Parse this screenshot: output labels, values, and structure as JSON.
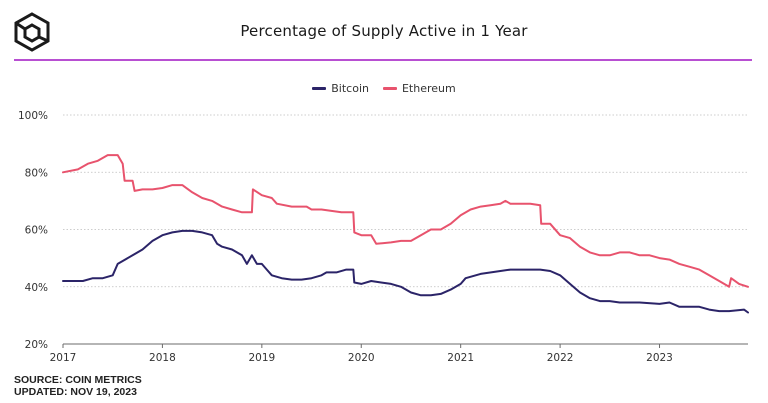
{
  "header": {
    "logo_icon": "cube-logo-icon",
    "accent_color": "#b84fd2"
  },
  "chart_data": {
    "type": "line",
    "title": "Percentage of Supply Active in 1 Year",
    "xlabel": "",
    "ylabel": "",
    "xlim": [
      2017.0,
      2023.89
    ],
    "ylim": [
      20,
      100
    ],
    "y_ticks": [
      {
        "value": 20,
        "label": "20%"
      },
      {
        "value": 40,
        "label": "40%"
      },
      {
        "value": 60,
        "label": "60%"
      },
      {
        "value": 80,
        "label": "80%"
      },
      {
        "value": 100,
        "label": "100%"
      }
    ],
    "x_ticks": [
      {
        "value": 2017,
        "label": "2017"
      },
      {
        "value": 2018,
        "label": "2018"
      },
      {
        "value": 2019,
        "label": "2019"
      },
      {
        "value": 2020,
        "label": "2020"
      },
      {
        "value": 2021,
        "label": "2021"
      },
      {
        "value": 2022,
        "label": "2022"
      },
      {
        "value": 2023,
        "label": "2023"
      }
    ],
    "grid": "horizontal",
    "legend_position": "top-center",
    "series": [
      {
        "name": "Bitcoin",
        "color": "#2b2468",
        "points": [
          [
            2017.0,
            42
          ],
          [
            2017.1,
            42
          ],
          [
            2017.2,
            42
          ],
          [
            2017.3,
            43
          ],
          [
            2017.4,
            43
          ],
          [
            2017.5,
            44
          ],
          [
            2017.55,
            48
          ],
          [
            2017.6,
            49
          ],
          [
            2017.7,
            51
          ],
          [
            2017.8,
            53
          ],
          [
            2017.9,
            56
          ],
          [
            2018.0,
            58
          ],
          [
            2018.1,
            59
          ],
          [
            2018.2,
            59.5
          ],
          [
            2018.3,
            59.5
          ],
          [
            2018.4,
            59
          ],
          [
            2018.5,
            58
          ],
          [
            2018.55,
            55
          ],
          [
            2018.6,
            54
          ],
          [
            2018.7,
            53
          ],
          [
            2018.8,
            51
          ],
          [
            2018.85,
            48
          ],
          [
            2018.9,
            51
          ],
          [
            2018.95,
            48
          ],
          [
            2019.0,
            48
          ],
          [
            2019.05,
            46
          ],
          [
            2019.1,
            44
          ],
          [
            2019.2,
            43
          ],
          [
            2019.3,
            42.5
          ],
          [
            2019.4,
            42.5
          ],
          [
            2019.5,
            43
          ],
          [
            2019.6,
            44
          ],
          [
            2019.65,
            45
          ],
          [
            2019.75,
            45
          ],
          [
            2019.85,
            46
          ],
          [
            2019.92,
            46
          ],
          [
            2019.93,
            41.5
          ],
          [
            2020.0,
            41
          ],
          [
            2020.1,
            42
          ],
          [
            2020.2,
            41.5
          ],
          [
            2020.3,
            41
          ],
          [
            2020.4,
            40
          ],
          [
            2020.5,
            38
          ],
          [
            2020.6,
            37
          ],
          [
            2020.7,
            37
          ],
          [
            2020.8,
            37.5
          ],
          [
            2020.9,
            39
          ],
          [
            2021.0,
            41
          ],
          [
            2021.05,
            43
          ],
          [
            2021.2,
            44.5
          ],
          [
            2021.4,
            45.5
          ],
          [
            2021.5,
            46
          ],
          [
            2021.6,
            46
          ],
          [
            2021.7,
            46
          ],
          [
            2021.8,
            46
          ],
          [
            2021.9,
            45.5
          ],
          [
            2022.0,
            44
          ],
          [
            2022.1,
            41
          ],
          [
            2022.2,
            38
          ],
          [
            2022.3,
            36
          ],
          [
            2022.4,
            35
          ],
          [
            2022.5,
            35
          ],
          [
            2022.6,
            34.5
          ],
          [
            2022.8,
            34.5
          ],
          [
            2023.0,
            34
          ],
          [
            2023.1,
            34.5
          ],
          [
            2023.2,
            33
          ],
          [
            2023.3,
            33
          ],
          [
            2023.4,
            33
          ],
          [
            2023.5,
            32
          ],
          [
            2023.6,
            31.5
          ],
          [
            2023.7,
            31.5
          ],
          [
            2023.85,
            32
          ],
          [
            2023.89,
            31
          ]
        ]
      },
      {
        "name": "Ethereum",
        "color": "#e8536d",
        "points": [
          [
            2017.0,
            80
          ],
          [
            2017.15,
            81
          ],
          [
            2017.25,
            83
          ],
          [
            2017.35,
            84
          ],
          [
            2017.45,
            86
          ],
          [
            2017.55,
            86
          ],
          [
            2017.6,
            83
          ],
          [
            2017.62,
            77
          ],
          [
            2017.7,
            77
          ],
          [
            2017.72,
            73.5
          ],
          [
            2017.8,
            74
          ],
          [
            2017.9,
            74
          ],
          [
            2018.0,
            74.5
          ],
          [
            2018.1,
            75.5
          ],
          [
            2018.2,
            75.5
          ],
          [
            2018.3,
            73
          ],
          [
            2018.4,
            71
          ],
          [
            2018.5,
            70
          ],
          [
            2018.6,
            68
          ],
          [
            2018.7,
            67
          ],
          [
            2018.8,
            66
          ],
          [
            2018.9,
            66
          ],
          [
            2018.91,
            74
          ],
          [
            2019.0,
            72
          ],
          [
            2019.1,
            71
          ],
          [
            2019.15,
            69
          ],
          [
            2019.3,
            68
          ],
          [
            2019.45,
            68
          ],
          [
            2019.5,
            67
          ],
          [
            2019.6,
            67
          ],
          [
            2019.7,
            66.5
          ],
          [
            2019.8,
            66
          ],
          [
            2019.9,
            66
          ],
          [
            2019.92,
            66
          ],
          [
            2019.93,
            59
          ],
          [
            2020.0,
            58
          ],
          [
            2020.1,
            58
          ],
          [
            2020.15,
            55
          ],
          [
            2020.3,
            55.5
          ],
          [
            2020.4,
            56
          ],
          [
            2020.5,
            56
          ],
          [
            2020.6,
            58
          ],
          [
            2020.7,
            60
          ],
          [
            2020.8,
            60
          ],
          [
            2020.9,
            62
          ],
          [
            2021.0,
            65
          ],
          [
            2021.1,
            67
          ],
          [
            2021.2,
            68
          ],
          [
            2021.3,
            68.5
          ],
          [
            2021.4,
            69
          ],
          [
            2021.45,
            70
          ],
          [
            2021.5,
            69
          ],
          [
            2021.6,
            69
          ],
          [
            2021.7,
            69
          ],
          [
            2021.8,
            68.5
          ],
          [
            2021.81,
            62
          ],
          [
            2021.9,
            62
          ],
          [
            2022.0,
            58
          ],
          [
            2022.1,
            57
          ],
          [
            2022.2,
            54
          ],
          [
            2022.3,
            52
          ],
          [
            2022.4,
            51
          ],
          [
            2022.5,
            51
          ],
          [
            2022.6,
            52
          ],
          [
            2022.7,
            52
          ],
          [
            2022.8,
            51
          ],
          [
            2022.9,
            51
          ],
          [
            2023.0,
            50
          ],
          [
            2023.1,
            49.5
          ],
          [
            2023.2,
            48
          ],
          [
            2023.3,
            47
          ],
          [
            2023.4,
            46
          ],
          [
            2023.5,
            44
          ],
          [
            2023.6,
            42
          ],
          [
            2023.7,
            40
          ],
          [
            2023.72,
            43
          ],
          [
            2023.8,
            41
          ],
          [
            2023.89,
            40
          ]
        ]
      }
    ],
    "source_lines": [
      "SOURCE: COIN METRICS",
      "UPDATED: NOV 19, 2023"
    ]
  }
}
